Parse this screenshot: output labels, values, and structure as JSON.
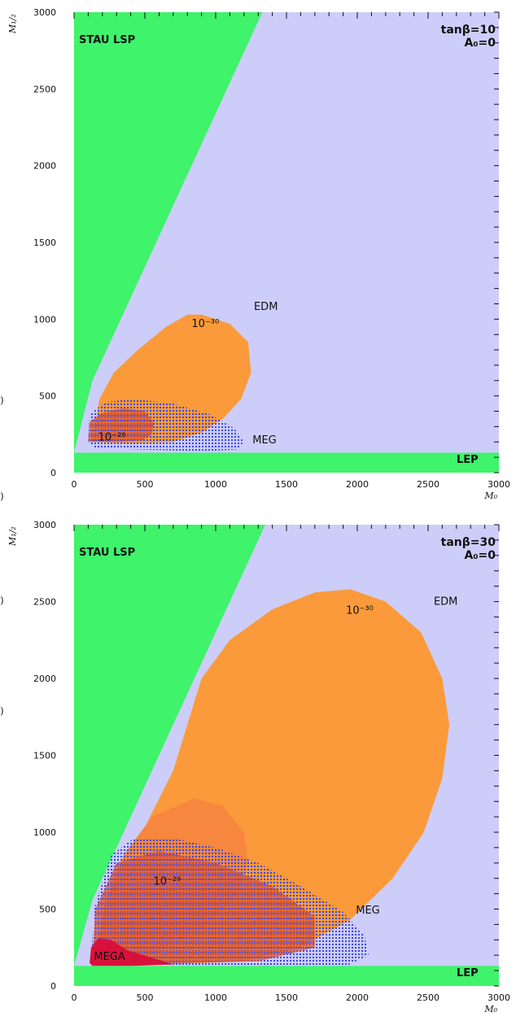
{
  "colors": {
    "allowed": "#cdcdfa",
    "excluded": "#3ff36a",
    "edm": "#fb9a3a",
    "edm_inner": "#f7863f",
    "meg": "#3b48e8",
    "mega": "#d8113a"
  },
  "chart_data": [
    {
      "type": "area",
      "x_axis_label": "M₀",
      "y_axis_label": "M₁/₂",
      "xlim": [
        0,
        3000
      ],
      "ylim": [
        0,
        3000
      ],
      "x_ticks": [
        "0",
        "500",
        "1000",
        "1500",
        "2000",
        "2500",
        "3000"
      ],
      "y_ticks": [
        "0",
        "500",
        "1000",
        "1500",
        "2000",
        "2500",
        "3000"
      ],
      "params": {
        "tanbeta": "tanβ=10",
        "a0": "A₀=0"
      },
      "labels": {
        "stau": "STAU LSP",
        "lep": "LEP",
        "edm": "EDM",
        "edm_value": "10⁻³⁰",
        "meg": "MEG",
        "inner": "10⁻²⁸"
      },
      "regions": {
        "stau_lsp": [
          [
            0,
            130
          ],
          [
            0,
            3000
          ],
          [
            1330,
            3000
          ],
          [
            130,
            600
          ]
        ],
        "lep": [
          [
            0,
            0
          ],
          [
            3000,
            0
          ],
          [
            3000,
            130
          ],
          [
            0,
            130
          ]
        ],
        "edm_contour": [
          [
            130,
            210
          ],
          [
            180,
            480
          ],
          [
            280,
            650
          ],
          [
            450,
            800
          ],
          [
            650,
            950
          ],
          [
            800,
            1030
          ],
          [
            900,
            1030
          ],
          [
            1100,
            970
          ],
          [
            1230,
            850
          ],
          [
            1250,
            650
          ],
          [
            1180,
            480
          ],
          [
            1050,
            350
          ],
          [
            900,
            260
          ],
          [
            700,
            200
          ],
          [
            400,
            190
          ],
          [
            130,
            200
          ]
        ],
        "meg_contour": [
          [
            100,
            200
          ],
          [
            110,
            380
          ],
          [
            220,
            460
          ],
          [
            420,
            480
          ],
          [
            700,
            450
          ],
          [
            960,
            380
          ],
          [
            1130,
            290
          ],
          [
            1200,
            200
          ],
          [
            1150,
            150
          ],
          [
            900,
            140
          ],
          [
            500,
            150
          ],
          [
            150,
            160
          ]
        ],
        "inner_contour": [
          [
            100,
            210
          ],
          [
            110,
            330
          ],
          [
            200,
            390
          ],
          [
            350,
            420
          ],
          [
            500,
            400
          ],
          [
            560,
            330
          ],
          [
            550,
            250
          ],
          [
            480,
            210
          ],
          [
            300,
            200
          ],
          [
            100,
            200
          ]
        ]
      }
    },
    {
      "type": "area",
      "x_axis_label": "M₀",
      "y_axis_label": "M₁/₂",
      "xlim": [
        0,
        3000
      ],
      "ylim": [
        0,
        3000
      ],
      "x_ticks": [
        "0",
        "500",
        "1000",
        "1500",
        "2000",
        "2500",
        "3000"
      ],
      "y_ticks": [
        "0",
        "500",
        "1000",
        "1500",
        "2000",
        "2500",
        "3000"
      ],
      "params": {
        "tanbeta": "tanβ=30",
        "a0": "A₀=0"
      },
      "labels": {
        "stau": "STAU LSP",
        "lep": "LEP",
        "edm": "EDM",
        "edm_value": "10⁻³⁰",
        "meg": "MEG",
        "inner": "10⁻²⁹",
        "mega": "MEGA"
      },
      "regions": {
        "stau_lsp": [
          [
            0,
            130
          ],
          [
            0,
            3000
          ],
          [
            1350,
            3000
          ],
          [
            130,
            560
          ]
        ],
        "lep": [
          [
            0,
            0
          ],
          [
            3000,
            0
          ],
          [
            3000,
            130
          ],
          [
            0,
            130
          ]
        ],
        "edm_contour": [
          [
            130,
            170
          ],
          [
            200,
            420
          ],
          [
            400,
            850
          ],
          [
            700,
            1400
          ],
          [
            900,
            2000
          ],
          [
            1100,
            2250
          ],
          [
            1400,
            2450
          ],
          [
            1700,
            2560
          ],
          [
            1950,
            2580
          ],
          [
            2200,
            2500
          ],
          [
            2450,
            2300
          ],
          [
            2600,
            2000
          ],
          [
            2650,
            1700
          ],
          [
            2600,
            1350
          ],
          [
            2470,
            1000
          ],
          [
            2250,
            700
          ],
          [
            1950,
            430
          ],
          [
            1600,
            250
          ],
          [
            1200,
            160
          ],
          [
            700,
            140
          ],
          [
            400,
            150
          ],
          [
            130,
            160
          ]
        ],
        "edm_inner_contour": [
          [
            150,
            180
          ],
          [
            220,
            550
          ],
          [
            350,
            850
          ],
          [
            550,
            1100
          ],
          [
            850,
            1220
          ],
          [
            1050,
            1170
          ],
          [
            1200,
            1000
          ],
          [
            1230,
            800
          ],
          [
            1150,
            600
          ],
          [
            950,
            400
          ],
          [
            650,
            250
          ],
          [
            350,
            190
          ],
          [
            150,
            180
          ]
        ],
        "meg_contour": [
          [
            120,
            170
          ],
          [
            140,
            500
          ],
          [
            260,
            850
          ],
          [
            420,
            960
          ],
          [
            700,
            960
          ],
          [
            1000,
            900
          ],
          [
            1300,
            800
          ],
          [
            1600,
            650
          ],
          [
            1900,
            480
          ],
          [
            2050,
            330
          ],
          [
            2080,
            200
          ],
          [
            1900,
            120
          ],
          [
            1400,
            100
          ],
          [
            800,
            110
          ],
          [
            300,
            140
          ],
          [
            120,
            150
          ]
        ],
        "inner_contour": [
          [
            130,
            170
          ],
          [
            150,
            500
          ],
          [
            300,
            800
          ],
          [
            600,
            880
          ],
          [
            1000,
            800
          ],
          [
            1400,
            650
          ],
          [
            1700,
            450
          ],
          [
            1700,
            250
          ],
          [
            1300,
            160
          ],
          [
            700,
            150
          ],
          [
            300,
            160
          ],
          [
            130,
            170
          ]
        ],
        "mega_contour": [
          [
            110,
            150
          ],
          [
            120,
            250
          ],
          [
            170,
            310
          ],
          [
            260,
            300
          ],
          [
            380,
            230
          ],
          [
            600,
            170
          ],
          [
            700,
            140
          ],
          [
            400,
            130
          ],
          [
            130,
            130
          ]
        ]
      }
    }
  ]
}
